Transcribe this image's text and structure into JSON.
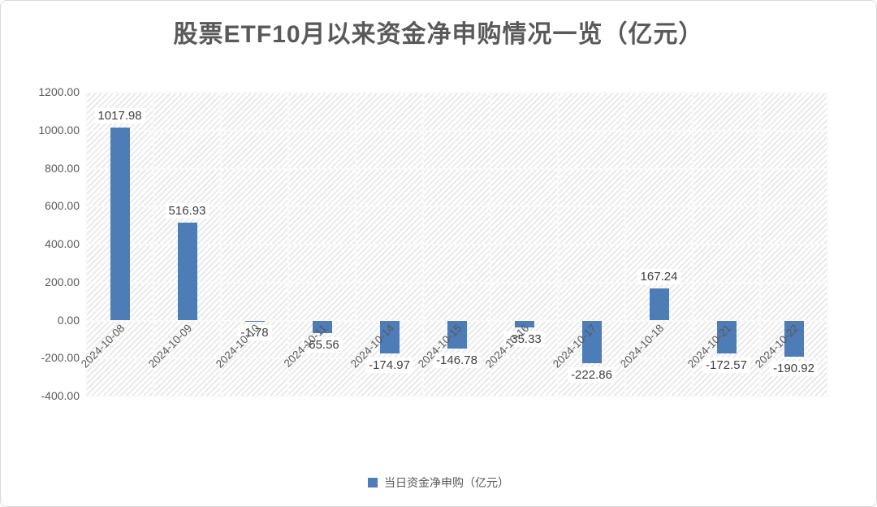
{
  "title": "股票ETF10月以来资金净申购情况一览（亿元）",
  "legend": {
    "label": "当日资金净申购（亿元）",
    "marker_color": "#4d7cb7"
  },
  "chart_data": {
    "type": "bar",
    "title": "股票ETF10月以来资金净申购情况一览（亿元）",
    "series_name": "当日资金净申购（亿元）",
    "categories": [
      "2024-10-08",
      "2024-10-09",
      "2024-10-10",
      "2024-10-11",
      "2024-10-14",
      "2024-10-15",
      "2024-10-16",
      "2024-10-17",
      "2024-10-18",
      "2024-10-21",
      "2024-10-22"
    ],
    "values": [
      1017.98,
      516.93,
      -1.78,
      -65.56,
      -174.97,
      -146.78,
      -35.33,
      -222.86,
      167.24,
      -172.57,
      -190.92
    ],
    "data_labels": [
      "1017.98",
      "516.93",
      "-1.78",
      "-65.56",
      "-174.97",
      "-146.78",
      "-35.33",
      "-222.86",
      "167.24",
      "-172.57",
      "-190.92"
    ],
    "ylim": [
      -400,
      1200
    ],
    "ytick_step": 200,
    "yticks": [
      "1200.00",
      "1000.00",
      "800.00",
      "600.00",
      "400.00",
      "200.00",
      "0.00",
      "-200.00",
      "-400.00"
    ],
    "xlabel": "",
    "ylabel": "",
    "bar_color": "#4d7cb7",
    "grid": "on",
    "plot_background": "diagonal-hatch",
    "legend_position": "bottom"
  }
}
